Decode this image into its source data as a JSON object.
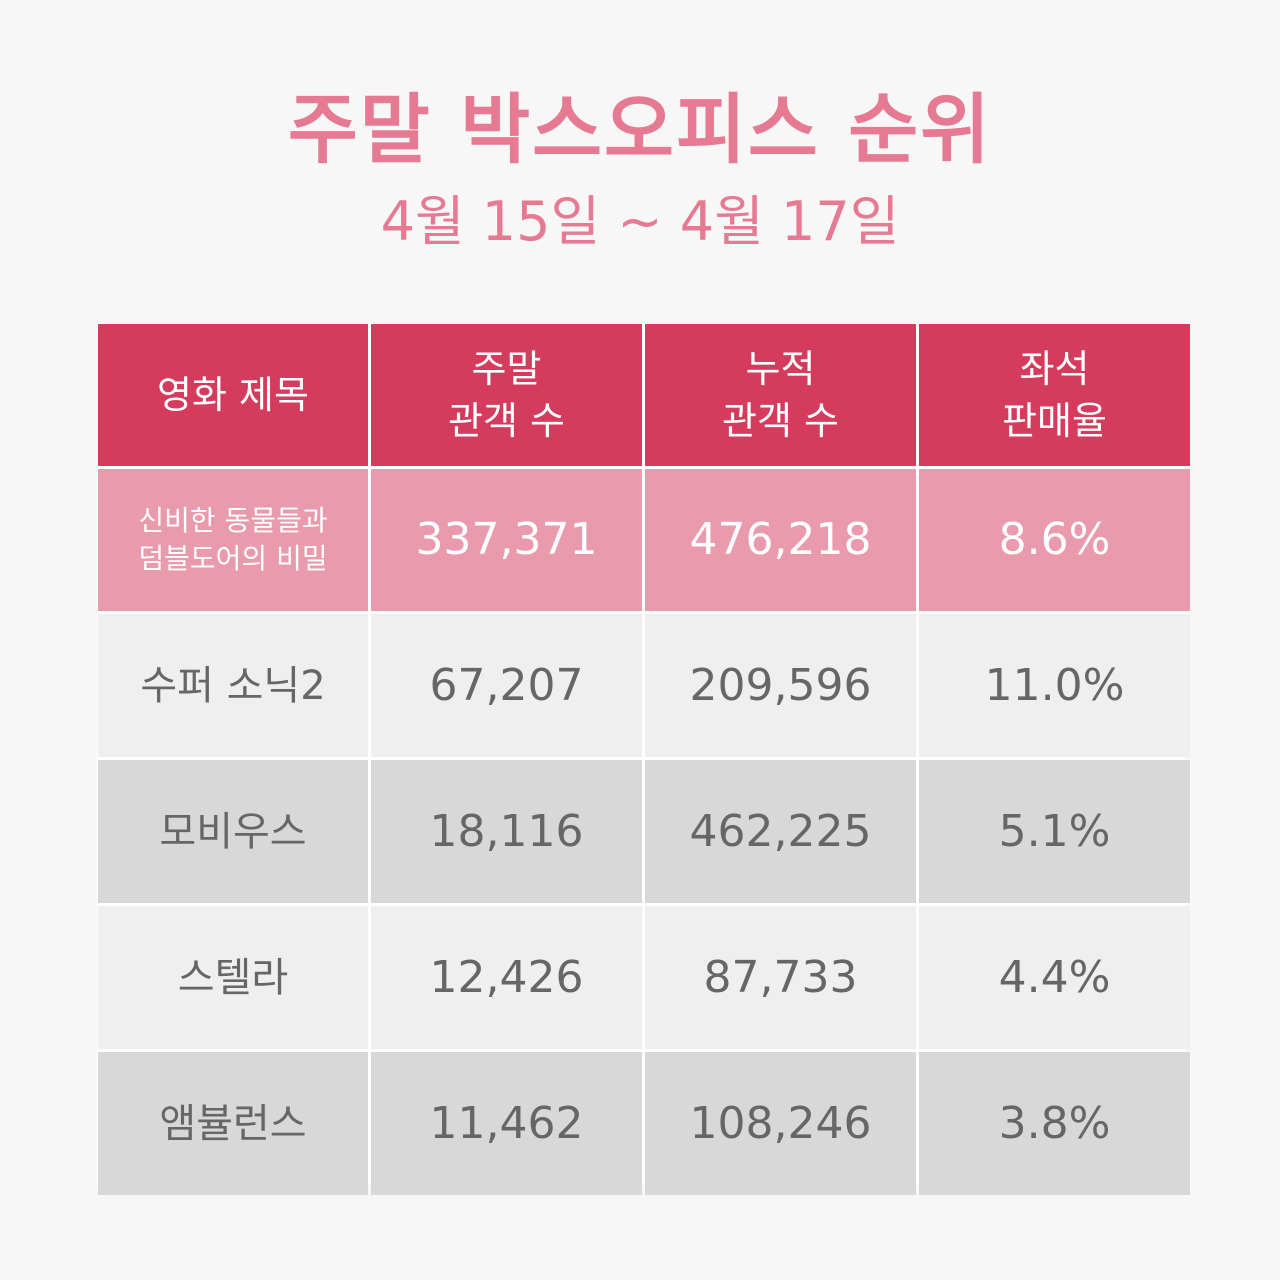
{
  "title": "주말 박스오피스 순위",
  "subtitle": "4월 15일 ~ 4월 17일",
  "table": {
    "headers": [
      "영화 제목",
      "주말\n관객 수",
      "누적\n관객 수",
      "좌석\n판매율"
    ],
    "rows": [
      [
        "신비한 동물들과\n덤블도어의 비밀",
        "337,371",
        "476,218",
        "8.6%"
      ],
      [
        "수퍼 소닉2",
        "67,207",
        "209,596",
        "11.0%"
      ],
      [
        "모비우스",
        "18,116",
        "462,225",
        "5.1%"
      ],
      [
        "스텔라",
        "12,426",
        "87,733",
        "4.4%"
      ],
      [
        "앰뷸런스",
        "11,462",
        "108,246",
        "3.8%"
      ]
    ]
  },
  "colors": {
    "title": "#e67a92",
    "header_bg": "#d43b5d",
    "highlight_row_bg": "#e99aad",
    "row_light_bg": "#efefef",
    "row_dark_bg": "#d8d8d8",
    "text_gray": "#666666"
  }
}
